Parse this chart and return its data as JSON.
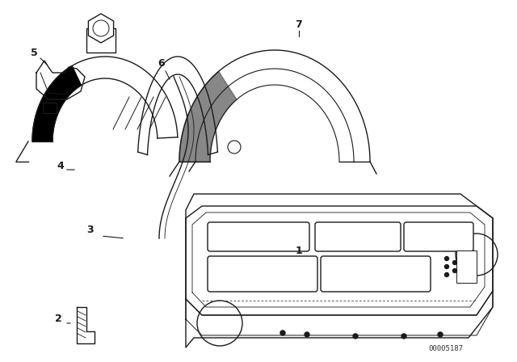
{
  "bg_color": "#ffffff",
  "line_color": "#1a1a1a",
  "part_number_text": "00005187",
  "figsize": [
    6.4,
    4.48
  ],
  "dpi": 100
}
